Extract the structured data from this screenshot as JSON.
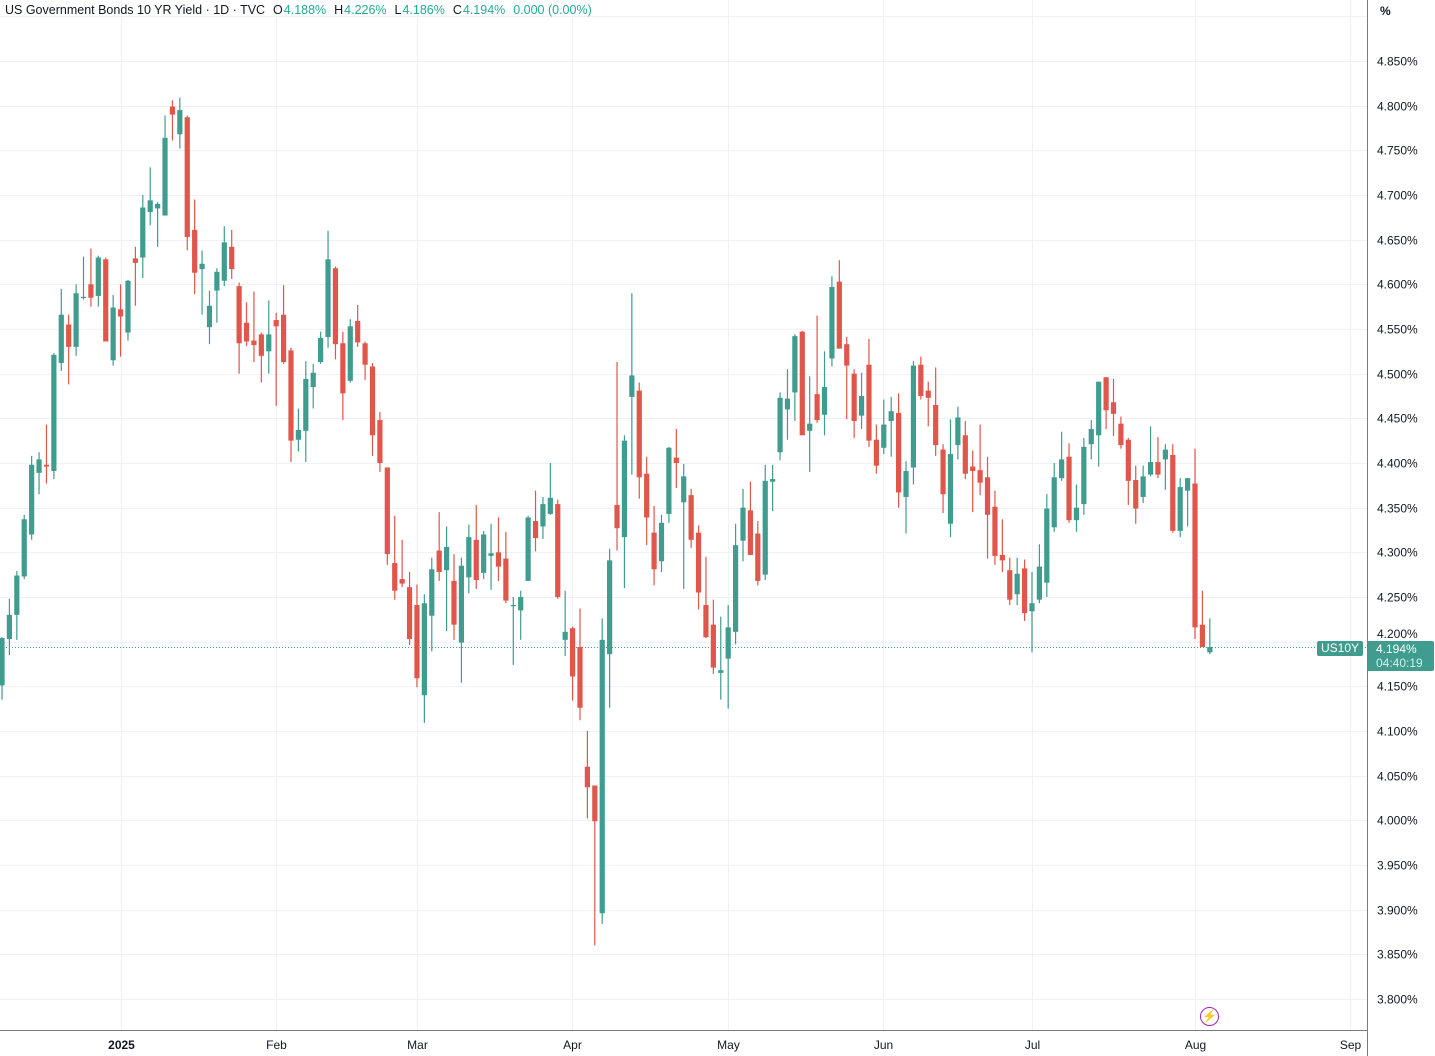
{
  "legend": {
    "title": "US Government Bonds 10 YR Yield · 1D · TVC",
    "open_label": "O",
    "open": "4.188%",
    "high_label": "H",
    "high": "4.226%",
    "low_label": "L",
    "low": "4.186%",
    "close_label": "C",
    "close": "4.194%",
    "change": "0.000 (0.00%)"
  },
  "price_axis": {
    "unit": "%"
  },
  "current": {
    "symbol": "US10Y",
    "price": "4.194%",
    "countdown": "04:40:19",
    "value": 4.194
  },
  "colors": {
    "up": "#3f9c8f",
    "down": "#e0564b",
    "grid": "#f0f1f6",
    "axis": "#787b86"
  },
  "alert_icon": "lightning-bolt-icon",
  "chart_data": {
    "type": "candlestick",
    "title": "US Government Bonds 10 YR Yield · 1D · TVC",
    "xlabel": "",
    "ylabel": "",
    "ylim": [
      3.77,
      4.91
    ],
    "grid": true,
    "x_ticks": [
      {
        "label": "2025",
        "bold": true,
        "pos": 0
      },
      {
        "label": "Feb",
        "pos": 1
      },
      {
        "label": "Mar",
        "pos": 2
      },
      {
        "label": "Apr",
        "pos": 3
      },
      {
        "label": "May",
        "pos": 4
      },
      {
        "label": "Jun",
        "pos": 5
      },
      {
        "label": "Jul",
        "pos": 6
      },
      {
        "label": "Aug",
        "pos": 7
      },
      {
        "label": "Sep",
        "pos": 8
      }
    ],
    "y_ticks": [
      "4.850%",
      "4.800%",
      "4.750%",
      "4.700%",
      "4.650%",
      "4.600%",
      "4.550%",
      "4.500%",
      "4.450%",
      "4.400%",
      "4.350%",
      "4.300%",
      "4.250%",
      "4.200%",
      "4.150%",
      "4.100%",
      "4.050%",
      "4.000%",
      "3.950%",
      "3.900%",
      "3.850%",
      "3.800%"
    ],
    "ohlc_fields": [
      "open",
      "high",
      "low",
      "close"
    ],
    "candles": [
      [
        4.151,
        4.205,
        4.135,
        4.204
      ],
      [
        4.203,
        4.248,
        4.185,
        4.23
      ],
      [
        4.23,
        4.279,
        4.202,
        4.274
      ],
      [
        4.273,
        4.342,
        4.27,
        4.337
      ],
      [
        4.32,
        4.408,
        4.314,
        4.398
      ],
      [
        4.389,
        4.412,
        4.365,
        4.404
      ],
      [
        4.398,
        4.443,
        4.377,
        4.396
      ],
      [
        4.391,
        4.523,
        4.382,
        4.521
      ],
      [
        4.512,
        4.595,
        4.503,
        4.566
      ],
      [
        4.555,
        4.566,
        4.488,
        4.53
      ],
      [
        4.53,
        4.6,
        4.52,
        4.59
      ],
      [
        4.585,
        4.631,
        4.583,
        4.586
      ],
      [
        4.6,
        4.64,
        4.575,
        4.585
      ],
      [
        4.587,
        4.632,
        4.575,
        4.63
      ],
      [
        4.628,
        4.63,
        4.536,
        4.536
      ],
      [
        4.515,
        4.588,
        4.509,
        4.574
      ],
      [
        4.572,
        4.6,
        4.519,
        4.564
      ],
      [
        4.546,
        4.605,
        4.537,
        4.604
      ],
      [
        4.629,
        4.642,
        4.576,
        4.624
      ],
      [
        4.63,
        4.7,
        4.607,
        4.686
      ],
      [
        4.681,
        4.731,
        4.666,
        4.694
      ],
      [
        4.685,
        4.692,
        4.642,
        4.69
      ],
      [
        4.677,
        4.789,
        4.677,
        4.764
      ],
      [
        4.799,
        4.806,
        4.761,
        4.79
      ],
      [
        4.768,
        4.809,
        4.752,
        4.795
      ],
      [
        4.787,
        4.789,
        4.638,
        4.653
      ],
      [
        4.661,
        4.695,
        4.589,
        4.613
      ],
      [
        4.617,
        4.638,
        4.566,
        4.623
      ],
      [
        4.552,
        4.593,
        4.533,
        4.576
      ],
      [
        4.593,
        4.618,
        4.557,
        4.614
      ],
      [
        4.604,
        4.665,
        4.598,
        4.647
      ],
      [
        4.642,
        4.661,
        4.606,
        4.617
      ],
      [
        4.598,
        4.602,
        4.5,
        4.534
      ],
      [
        4.557,
        4.58,
        4.531,
        4.536
      ],
      [
        4.537,
        4.592,
        4.513,
        4.532
      ],
      [
        4.544,
        4.546,
        4.49,
        4.52
      ],
      [
        4.525,
        4.582,
        4.5,
        4.544
      ],
      [
        4.56,
        4.568,
        4.464,
        4.553
      ],
      [
        4.566,
        4.599,
        4.511,
        4.513
      ],
      [
        4.526,
        4.529,
        4.401,
        4.425
      ],
      [
        4.426,
        4.461,
        4.413,
        4.437
      ],
      [
        4.436,
        4.514,
        4.401,
        4.494
      ],
      [
        4.485,
        4.511,
        4.461,
        4.501
      ],
      [
        4.513,
        4.547,
        4.511,
        4.54
      ],
      [
        4.541,
        4.66,
        4.529,
        4.628
      ],
      [
        4.618,
        4.62,
        4.516,
        4.533
      ],
      [
        4.534,
        4.547,
        4.448,
        4.478
      ],
      [
        4.492,
        4.561,
        4.49,
        4.553
      ],
      [
        4.559,
        4.577,
        4.53,
        4.535
      ],
      [
        4.534,
        4.536,
        4.493,
        4.51
      ],
      [
        4.508,
        4.512,
        4.408,
        4.431
      ],
      [
        4.448,
        4.457,
        4.39,
        4.4
      ],
      [
        4.395,
        4.395,
        4.286,
        4.298
      ],
      [
        4.288,
        4.341,
        4.247,
        4.257
      ],
      [
        4.27,
        4.314,
        4.261,
        4.265
      ],
      [
        4.261,
        4.278,
        4.196,
        4.203
      ],
      [
        4.241,
        4.264,
        4.149,
        4.159
      ],
      [
        4.14,
        4.253,
        4.109,
        4.243
      ],
      [
        4.229,
        4.294,
        4.189,
        4.281
      ],
      [
        4.302,
        4.345,
        4.268,
        4.278
      ],
      [
        4.28,
        4.329,
        4.212,
        4.306
      ],
      [
        4.268,
        4.298,
        4.202,
        4.219
      ],
      [
        4.199,
        4.294,
        4.154,
        4.285
      ],
      [
        4.272,
        4.331,
        4.254,
        4.317
      ],
      [
        4.314,
        4.353,
        4.259,
        4.269
      ],
      [
        4.277,
        4.324,
        4.27,
        4.32
      ],
      [
        4.296,
        4.332,
        4.258,
        4.299
      ],
      [
        4.3,
        4.339,
        4.268,
        4.284
      ],
      [
        4.293,
        4.323,
        4.243,
        4.246
      ],
      [
        4.24,
        4.25,
        4.174,
        4.241
      ],
      [
        4.235,
        4.257,
        4.202,
        4.25
      ],
      [
        4.268,
        4.341,
        4.268,
        4.339
      ],
      [
        4.335,
        4.369,
        4.301,
        4.316
      ],
      [
        4.329,
        4.362,
        4.315,
        4.354
      ],
      [
        4.343,
        4.4,
        4.342,
        4.361
      ],
      [
        4.354,
        4.359,
        4.248,
        4.25
      ],
      [
        4.202,
        4.257,
        4.184,
        4.211
      ],
      [
        4.215,
        4.217,
        4.134,
        4.161
      ],
      [
        4.194,
        4.237,
        4.112,
        4.126
      ],
      [
        4.06,
        4.1,
        4.002,
        4.037
      ],
      [
        4.039,
        4.039,
        3.86,
        3.999
      ],
      [
        3.896,
        4.226,
        3.884,
        4.202
      ],
      [
        4.186,
        4.304,
        4.126,
        4.291
      ],
      [
        4.353,
        4.513,
        4.302,
        4.327
      ],
      [
        4.317,
        4.431,
        4.26,
        4.425
      ],
      [
        4.474,
        4.59,
        4.387,
        4.498
      ],
      [
        4.481,
        4.49,
        4.36,
        4.384
      ],
      [
        4.388,
        4.407,
        4.308,
        4.339
      ],
      [
        4.322,
        4.352,
        4.263,
        4.281
      ],
      [
        4.29,
        4.342,
        4.278,
        4.333
      ],
      [
        4.343,
        4.418,
        4.333,
        4.417
      ],
      [
        4.406,
        4.438,
        4.372,
        4.4
      ],
      [
        4.356,
        4.399,
        4.259,
        4.385
      ],
      [
        4.364,
        4.371,
        4.305,
        4.314
      ],
      [
        4.322,
        4.33,
        4.236,
        4.255
      ],
      [
        4.241,
        4.295,
        4.204,
        4.205
      ],
      [
        4.219,
        4.247,
        4.164,
        4.171
      ],
      [
        4.165,
        4.228,
        4.135,
        4.168
      ],
      [
        4.181,
        4.241,
        4.125,
        4.216
      ],
      [
        4.211,
        4.332,
        4.197,
        4.308
      ],
      [
        4.313,
        4.371,
        4.29,
        4.35
      ],
      [
        4.347,
        4.379,
        4.297,
        4.297
      ],
      [
        4.321,
        4.335,
        4.263,
        4.268
      ],
      [
        4.275,
        4.398,
        4.269,
        4.38
      ],
      [
        4.379,
        4.398,
        4.346,
        4.382
      ],
      [
        4.412,
        4.479,
        4.403,
        4.473
      ],
      [
        4.46,
        4.505,
        4.426,
        4.472
      ],
      [
        4.479,
        4.544,
        4.447,
        4.542
      ],
      [
        4.547,
        4.548,
        4.431,
        4.431
      ],
      [
        4.436,
        4.497,
        4.39,
        4.444
      ],
      [
        4.477,
        4.565,
        4.445,
        4.448
      ],
      [
        4.454,
        4.525,
        4.431,
        4.485
      ],
      [
        4.517,
        4.609,
        4.508,
        4.597
      ],
      [
        4.603,
        4.627,
        4.528,
        4.528
      ],
      [
        4.533,
        4.541,
        4.449,
        4.509
      ],
      [
        4.5,
        4.505,
        4.428,
        4.447
      ],
      [
        4.453,
        4.501,
        4.438,
        4.475
      ],
      [
        4.51,
        4.539,
        4.418,
        4.425
      ],
      [
        4.426,
        4.443,
        4.388,
        4.397
      ],
      [
        4.417,
        4.471,
        4.41,
        4.443
      ],
      [
        4.447,
        4.474,
        4.407,
        4.458
      ],
      [
        4.456,
        4.478,
        4.35,
        4.367
      ],
      [
        4.362,
        4.402,
        4.321,
        4.391
      ],
      [
        4.395,
        4.514,
        4.376,
        4.509
      ],
      [
        4.51,
        4.519,
        4.471,
        4.475
      ],
      [
        4.481,
        4.491,
        4.441,
        4.473
      ],
      [
        4.465,
        4.507,
        4.408,
        4.42
      ],
      [
        4.415,
        4.421,
        4.344,
        4.365
      ],
      [
        4.332,
        4.449,
        4.317,
        4.41
      ],
      [
        4.42,
        4.463,
        4.404,
        4.451
      ],
      [
        4.431,
        4.447,
        4.382,
        4.388
      ],
      [
        4.396,
        4.414,
        4.345,
        4.391
      ],
      [
        4.392,
        4.443,
        4.364,
        4.378
      ],
      [
        4.384,
        4.407,
        4.293,
        4.342
      ],
      [
        4.351,
        4.369,
        4.286,
        4.296
      ],
      [
        4.297,
        4.337,
        4.278,
        4.291
      ],
      [
        4.28,
        4.294,
        4.241,
        4.247
      ],
      [
        4.253,
        4.294,
        4.241,
        4.276
      ],
      [
        4.282,
        4.292,
        4.223,
        4.232
      ],
      [
        4.234,
        4.278,
        4.188,
        4.243
      ],
      [
        4.247,
        4.309,
        4.243,
        4.284
      ],
      [
        4.266,
        4.365,
        4.25,
        4.349
      ],
      [
        4.328,
        4.4,
        4.323,
        4.384
      ],
      [
        4.383,
        4.435,
        4.38,
        4.404
      ],
      [
        4.407,
        4.422,
        4.333,
        4.336
      ],
      [
        4.336,
        4.376,
        4.323,
        4.35
      ],
      [
        4.354,
        4.428,
        4.342,
        4.418
      ],
      [
        4.421,
        4.448,
        4.404,
        4.438
      ],
      [
        4.431,
        4.491,
        4.396,
        4.491
      ],
      [
        4.496,
        4.496,
        4.438,
        4.459
      ],
      [
        4.468,
        4.494,
        4.43,
        4.455
      ],
      [
        4.444,
        4.452,
        4.416,
        4.42
      ],
      [
        4.426,
        4.428,
        4.353,
        4.38
      ],
      [
        4.381,
        4.397,
        4.332,
        4.349
      ],
      [
        4.362,
        4.397,
        4.355,
        4.385
      ],
      [
        4.387,
        4.441,
        4.385,
        4.401
      ],
      [
        4.401,
        4.429,
        4.383,
        4.387
      ],
      [
        4.404,
        4.421,
        4.37,
        4.415
      ],
      [
        4.409,
        4.421,
        4.322,
        4.324
      ],
      [
        4.324,
        4.383,
        4.317,
        4.373
      ],
      [
        4.369,
        4.383,
        4.329,
        4.383
      ],
      [
        4.377,
        4.416,
        4.203,
        4.216
      ],
      [
        4.219,
        4.257,
        4.194,
        4.194
      ],
      [
        4.188,
        4.226,
        4.186,
        4.194
      ]
    ]
  }
}
